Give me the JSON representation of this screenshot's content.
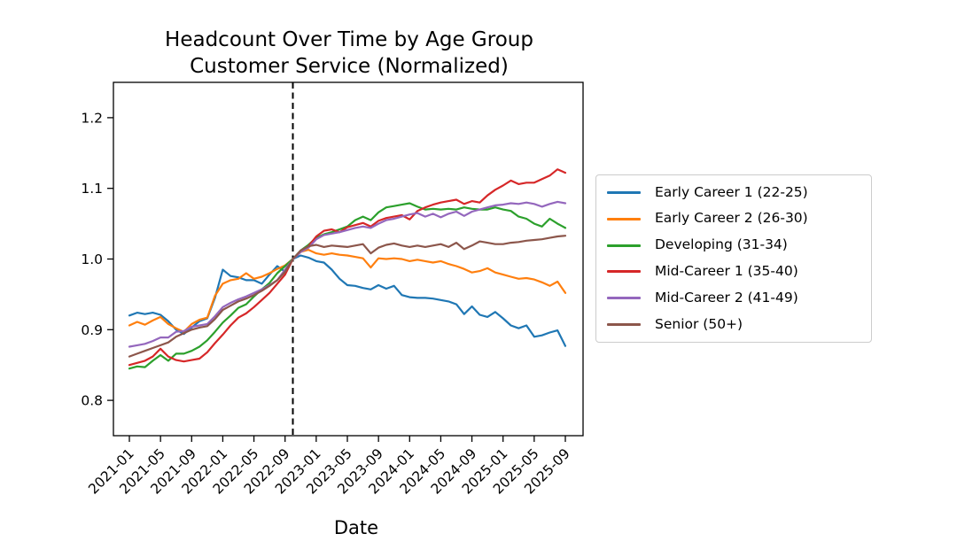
{
  "chart_data": {
    "type": "line",
    "title": "Headcount Over Time by Age Group",
    "subtitle": "Customer Service (Normalized)",
    "xlabel": "Date",
    "ylabel": "",
    "grid": false,
    "legend_position": "right of plot",
    "ylim": [
      0.75,
      1.25
    ],
    "y_ticks": [
      0.8,
      0.9,
      1.0,
      1.1,
      1.2
    ],
    "x_tick_labels": [
      "2021-01",
      "2021-05",
      "2021-09",
      "2022-01",
      "2022-05",
      "2022-09",
      "2023-01",
      "2023-05",
      "2023-09",
      "2024-01",
      "2024-05",
      "2024-09",
      "2025-01",
      "2025-05",
      "2025-09"
    ],
    "x_tick_every_n_months": 4,
    "vline": {
      "x": "2022-10",
      "style": "dashed",
      "color": "#000000",
      "meaning": "normalization point (all series = 1.0)"
    },
    "x": [
      "2021-01",
      "2021-02",
      "2021-03",
      "2021-04",
      "2021-05",
      "2021-06",
      "2021-07",
      "2021-08",
      "2021-09",
      "2021-10",
      "2021-11",
      "2021-12",
      "2022-01",
      "2022-02",
      "2022-03",
      "2022-04",
      "2022-05",
      "2022-06",
      "2022-07",
      "2022-08",
      "2022-09",
      "2022-10",
      "2022-11",
      "2022-12",
      "2023-01",
      "2023-02",
      "2023-03",
      "2023-04",
      "2023-05",
      "2023-06",
      "2023-07",
      "2023-08",
      "2023-09",
      "2023-10",
      "2023-11",
      "2023-12",
      "2024-01",
      "2024-02",
      "2024-03",
      "2024-04",
      "2024-05",
      "2024-06",
      "2024-07",
      "2024-08",
      "2024-09",
      "2024-10",
      "2024-11",
      "2024-12",
      "2025-01",
      "2025-02",
      "2025-03",
      "2025-04",
      "2025-05",
      "2025-06",
      "2025-07",
      "2025-08",
      "2025-09"
    ],
    "series": [
      {
        "name": "Early Career 1 (22-25)",
        "color": "#1f77b4",
        "values": [
          0.92,
          0.924,
          0.922,
          0.924,
          0.921,
          0.912,
          0.9,
          0.894,
          0.903,
          0.912,
          0.916,
          0.945,
          0.985,
          0.976,
          0.974,
          0.97,
          0.97,
          0.965,
          0.978,
          0.99,
          0.982,
          1.0,
          1.005,
          1.002,
          0.997,
          0.995,
          0.985,
          0.972,
          0.963,
          0.962,
          0.959,
          0.957,
          0.963,
          0.958,
          0.962,
          0.949,
          0.946,
          0.945,
          0.945,
          0.944,
          0.942,
          0.94,
          0.936,
          0.922,
          0.933,
          0.921,
          0.918,
          0.925,
          0.916,
          0.906,
          0.902,
          0.906,
          0.89,
          0.892,
          0.896,
          0.899,
          0.877
        ]
      },
      {
        "name": "Early Career 2 (26-30)",
        "color": "#ff7f0e",
        "values": [
          0.906,
          0.911,
          0.907,
          0.913,
          0.918,
          0.908,
          0.902,
          0.897,
          0.908,
          0.914,
          0.917,
          0.948,
          0.965,
          0.97,
          0.972,
          0.98,
          0.972,
          0.975,
          0.98,
          0.986,
          0.991,
          1.0,
          1.01,
          1.013,
          1.008,
          1.006,
          1.008,
          1.006,
          1.005,
          1.003,
          1.001,
          0.988,
          1.001,
          1.0,
          1.001,
          1.0,
          0.997,
          0.999,
          0.997,
          0.995,
          0.997,
          0.993,
          0.99,
          0.986,
          0.981,
          0.983,
          0.987,
          0.981,
          0.978,
          0.975,
          0.972,
          0.973,
          0.971,
          0.967,
          0.962,
          0.968,
          0.952
        ]
      },
      {
        "name": "Developing (31-34)",
        "color": "#2ca02c",
        "values": [
          0.845,
          0.848,
          0.847,
          0.856,
          0.864,
          0.856,
          0.866,
          0.866,
          0.87,
          0.876,
          0.885,
          0.897,
          0.91,
          0.92,
          0.931,
          0.936,
          0.947,
          0.957,
          0.966,
          0.98,
          0.99,
          1.0,
          1.012,
          1.02,
          1.03,
          1.035,
          1.038,
          1.042,
          1.046,
          1.055,
          1.06,
          1.055,
          1.066,
          1.073,
          1.075,
          1.077,
          1.079,
          1.074,
          1.07,
          1.071,
          1.07,
          1.071,
          1.07,
          1.073,
          1.071,
          1.07,
          1.07,
          1.073,
          1.07,
          1.068,
          1.06,
          1.057,
          1.05,
          1.046,
          1.057,
          1.05,
          1.044
        ]
      },
      {
        "name": "Mid-Career 1 (35-40)",
        "color": "#d62728",
        "values": [
          0.85,
          0.853,
          0.856,
          0.862,
          0.873,
          0.862,
          0.857,
          0.855,
          0.857,
          0.859,
          0.868,
          0.881,
          0.893,
          0.906,
          0.917,
          0.923,
          0.932,
          0.942,
          0.952,
          0.965,
          0.978,
          1.0,
          1.01,
          1.018,
          1.032,
          1.04,
          1.042,
          1.038,
          1.045,
          1.048,
          1.051,
          1.046,
          1.054,
          1.058,
          1.06,
          1.062,
          1.056,
          1.068,
          1.073,
          1.077,
          1.08,
          1.082,
          1.084,
          1.078,
          1.082,
          1.08,
          1.09,
          1.098,
          1.104,
          1.111,
          1.106,
          1.108,
          1.108,
          1.113,
          1.118,
          1.127,
          1.122
        ]
      },
      {
        "name": "Mid-Career 2 (41-49)",
        "color": "#9467bd",
        "values": [
          0.876,
          0.878,
          0.88,
          0.884,
          0.889,
          0.889,
          0.897,
          0.898,
          0.904,
          0.906,
          0.908,
          0.919,
          0.932,
          0.938,
          0.943,
          0.947,
          0.952,
          0.957,
          0.963,
          0.97,
          0.985,
          1.0,
          1.01,
          1.016,
          1.028,
          1.034,
          1.036,
          1.038,
          1.041,
          1.044,
          1.046,
          1.044,
          1.05,
          1.055,
          1.057,
          1.06,
          1.063,
          1.065,
          1.06,
          1.064,
          1.059,
          1.064,
          1.067,
          1.061,
          1.067,
          1.07,
          1.073,
          1.076,
          1.077,
          1.079,
          1.078,
          1.08,
          1.078,
          1.074,
          1.078,
          1.081,
          1.079
        ]
      },
      {
        "name": "Senior (50+)",
        "color": "#8c564b",
        "values": [
          0.862,
          0.866,
          0.87,
          0.874,
          0.878,
          0.882,
          0.89,
          0.895,
          0.9,
          0.903,
          0.905,
          0.915,
          0.928,
          0.934,
          0.94,
          0.944,
          0.949,
          0.955,
          0.962,
          0.97,
          0.982,
          1.0,
          1.012,
          1.018,
          1.02,
          1.017,
          1.019,
          1.018,
          1.017,
          1.019,
          1.021,
          1.008,
          1.016,
          1.02,
          1.022,
          1.019,
          1.017,
          1.019,
          1.017,
          1.019,
          1.021,
          1.017,
          1.023,
          1.014,
          1.019,
          1.025,
          1.023,
          1.021,
          1.021,
          1.023,
          1.024,
          1.026,
          1.027,
          1.028,
          1.03,
          1.032,
          1.033
        ]
      }
    ]
  }
}
